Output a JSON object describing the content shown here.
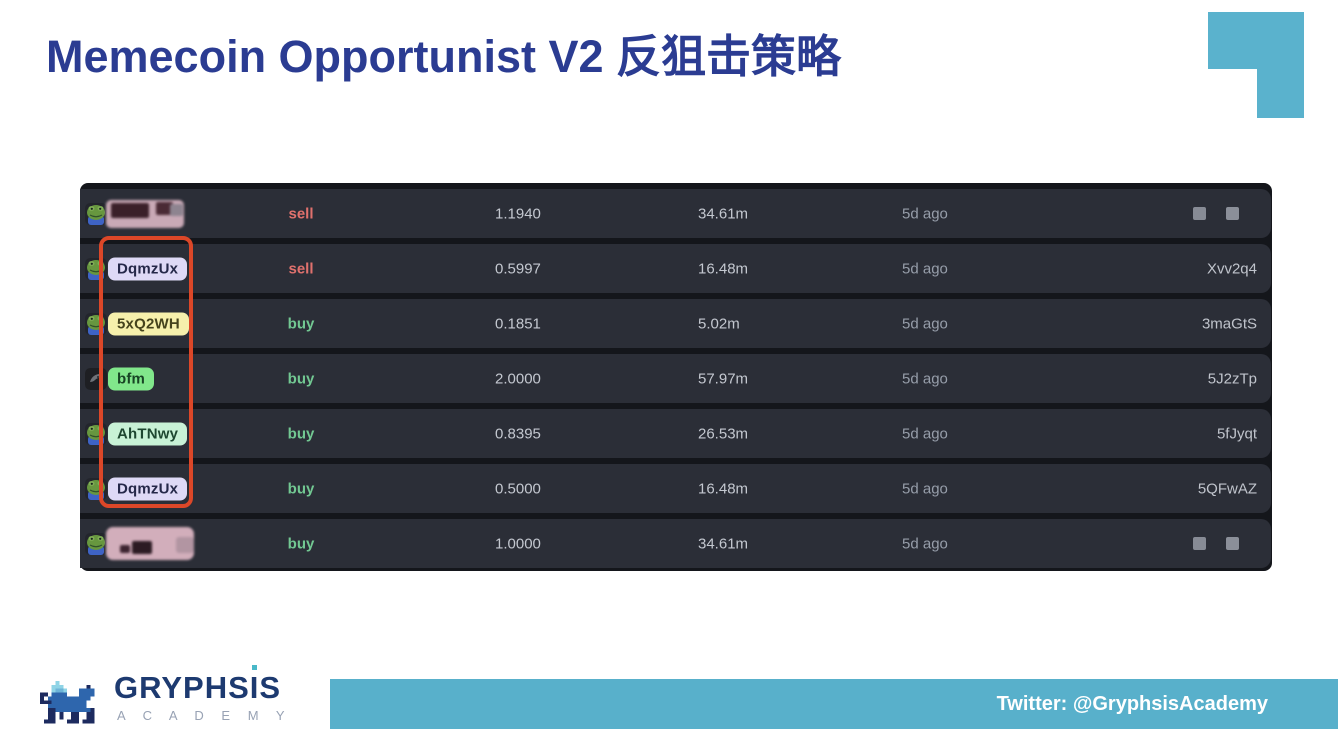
{
  "title": "Memecoin Opportunist V2 反狙击策略",
  "colors": {
    "accent_teal": "#5ab2cd",
    "title_navy": "#2b3c92",
    "table_bg": "#14161b",
    "row_bg": "#2b2e37",
    "sell_text": "#e0716d",
    "buy_text": "#72c892",
    "highlight_red": "#dc4728"
  },
  "table": {
    "rows": [
      {
        "avatar": "pepe-frog",
        "name": {
          "type": "censored",
          "variant": 1
        },
        "action": {
          "label": "sell",
          "kind": "sell"
        },
        "price": "1.1940",
        "amount": "34.61m",
        "time": "5d ago",
        "tx": {
          "type": "censored"
        }
      },
      {
        "avatar": "pepe-frog",
        "name": {
          "type": "badge",
          "label": "DqmzUx",
          "bg": "#ded9f6",
          "fg": "#252849"
        },
        "action": {
          "label": "sell",
          "kind": "sell"
        },
        "price": "0.5997",
        "amount": "16.48m",
        "time": "5d ago",
        "tx": {
          "type": "text",
          "label": "Xvv2q4"
        }
      },
      {
        "avatar": "pepe-frog",
        "name": {
          "type": "badge",
          "label": "5xQ2WH",
          "bg": "#f6f0ac",
          "fg": "#45431d"
        },
        "action": {
          "label": "buy",
          "kind": "buy"
        },
        "price": "0.1851",
        "amount": "5.02m",
        "time": "5d ago",
        "tx": {
          "type": "text",
          "label": "3maGtS"
        }
      },
      {
        "avatar": "dark-coin",
        "name": {
          "type": "badge",
          "label": "bfm",
          "bg": "#81e78b",
          "fg": "#174424"
        },
        "action": {
          "label": "buy",
          "kind": "buy"
        },
        "price": "2.0000",
        "amount": "57.97m",
        "time": "5d ago",
        "tx": {
          "type": "text",
          "label": "5J2zTp"
        }
      },
      {
        "avatar": "pepe-frog",
        "name": {
          "type": "badge",
          "label": "AhTNwy",
          "bg": "#c8f2d6",
          "fg": "#1d4730"
        },
        "action": {
          "label": "buy",
          "kind": "buy"
        },
        "price": "0.8395",
        "amount": "26.53m",
        "time": "5d ago",
        "tx": {
          "type": "text",
          "label": "5fJyqt"
        }
      },
      {
        "avatar": "pepe-frog",
        "name": {
          "type": "badge",
          "label": "DqmzUx",
          "bg": "#ded9f6",
          "fg": "#252849"
        },
        "action": {
          "label": "buy",
          "kind": "buy"
        },
        "price": "0.5000",
        "amount": "16.48m",
        "time": "5d ago",
        "tx": {
          "type": "text",
          "label": "5QFwAZ"
        }
      },
      {
        "avatar": "pepe-frog",
        "name": {
          "type": "censored",
          "variant": 2
        },
        "action": {
          "label": "buy",
          "kind": "buy"
        },
        "price": "1.0000",
        "amount": "34.61m",
        "time": "5d ago",
        "tx": {
          "type": "censored"
        }
      }
    ]
  },
  "logo": {
    "brand_pre": "GRYPHS",
    "brand_i": "I",
    "brand_post": "S",
    "subtitle": "A C A D E M Y"
  },
  "banner": {
    "text": "Twitter: @GryphsisAcademy"
  }
}
